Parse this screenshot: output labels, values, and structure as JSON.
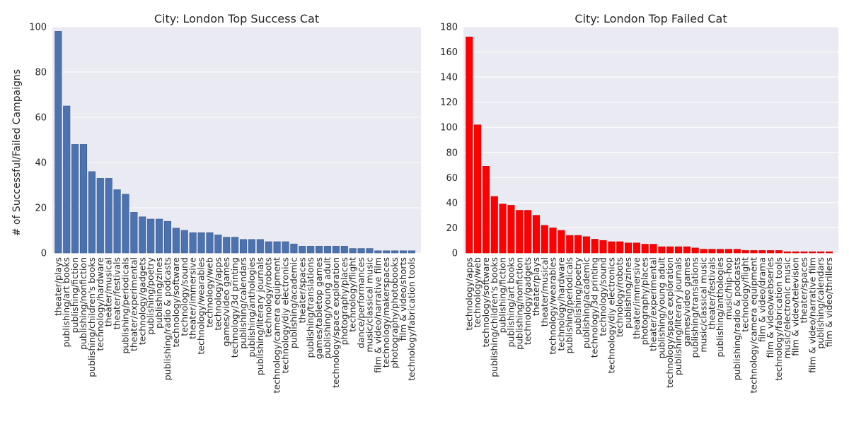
{
  "chart_data": [
    {
      "type": "bar",
      "title": "City: London Top Success Cat",
      "xlabel": "",
      "ylabel": "# of Successful/Failed Campaigns",
      "ylim": [
        0,
        100
      ],
      "yticks": [
        0,
        20,
        40,
        60,
        80,
        100
      ],
      "grid": true,
      "bar_color": "#4c72b0",
      "categories": [
        "theater/plays",
        "publishing/art books",
        "publishing/fiction",
        "publishing/nonfiction",
        "publishing/children's books",
        "technology/hardware",
        "theater/musical",
        "theater/festivals",
        "publishing/periodicals",
        "theater/experimental",
        "technology/gadgets",
        "publishing/poetry",
        "publishing/zines",
        "publishing/radio & podcasts",
        "technology/software",
        "technology/sound",
        "theater/immersive",
        "technology/wearables",
        "technology/web",
        "technology/apps",
        "games/video games",
        "technology/3d printing",
        "publishing/calendars",
        "publishing/anthologies",
        "publishing/literary journals",
        "technology/robots",
        "technology/camera equipment",
        "technology/diy electronics",
        "publishing/academic",
        "theater/spaces",
        "publishing/translations",
        "games/tabletop games",
        "publishing/young adult",
        "technology/space exploration",
        "photography/places",
        "technology/flight",
        "dance/performances",
        "music/classical music",
        "film & video/narrative film",
        "technology/makerspaces",
        "photography/photobooks",
        "film & video/shorts",
        "technology/fabrication tools"
      ],
      "values": [
        98,
        65,
        48,
        48,
        36,
        33,
        33,
        28,
        26,
        18,
        16,
        15,
        15,
        14,
        11,
        10,
        9,
        9,
        9,
        8,
        7,
        7,
        6,
        6,
        6,
        5,
        5,
        5,
        4,
        3,
        3,
        3,
        3,
        3,
        3,
        2,
        2,
        2,
        1,
        1,
        1,
        1,
        1
      ]
    },
    {
      "type": "bar",
      "title": "City: London Top Failed Cat",
      "xlabel": "",
      "ylabel": "",
      "ylim": [
        0,
        180
      ],
      "yticks": [
        0,
        20,
        40,
        60,
        80,
        100,
        120,
        140,
        160,
        180
      ],
      "grid": true,
      "bar_color": "#ff0000",
      "categories": [
        "technology/apps",
        "technology/web",
        "technology/software",
        "publishing/children's books",
        "publishing/fiction",
        "publishing/art books",
        "publishing/nonfiction",
        "technology/gadgets",
        "theater/plays",
        "theater/musical",
        "technology/wearables",
        "technology/hardware",
        "publishing/periodicals",
        "publishing/poetry",
        "publishing/academic",
        "technology/3d printing",
        "technology/sound",
        "technology/diy electronics",
        "technology/robots",
        "publishing/zines",
        "theater/immersive",
        "photography/places",
        "theater/experimental",
        "publishing/young adult",
        "technology/space exploration",
        "publishing/literary journals",
        "games/video games",
        "publishing/translations",
        "music/classical music",
        "theater/festivals",
        "publishing/anthologies",
        "music/hip-hop",
        "publishing/radio & podcasts",
        "technology/flight",
        "technology/camera equipment",
        "film & video/drama",
        "film & video/webseries",
        "technology/fabrication tools",
        "music/electronic music",
        "film & video/television",
        "theater/spaces",
        "film & video/narrative film",
        "publishing/calendars",
        "film & video/thrillers"
      ],
      "values": [
        172,
        102,
        69,
        45,
        39,
        38,
        34,
        34,
        30,
        22,
        20,
        18,
        14,
        14,
        13,
        11,
        10,
        9,
        9,
        8,
        8,
        7,
        7,
        5,
        5,
        5,
        5,
        4,
        3,
        3,
        3,
        3,
        3,
        2,
        2,
        2,
        2,
        2,
        1,
        1,
        1,
        1,
        1,
        1
      ]
    }
  ]
}
